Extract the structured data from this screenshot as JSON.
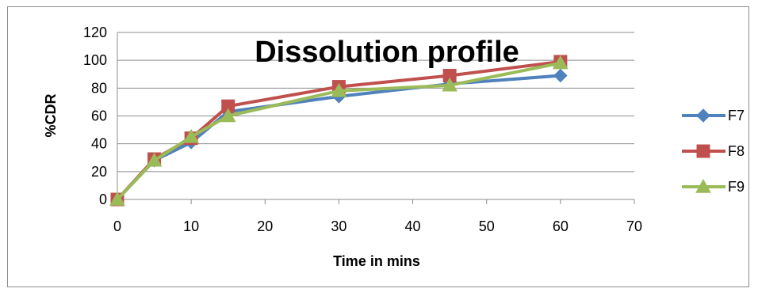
{
  "chart_data": {
    "type": "line",
    "title": "Dissolution profile",
    "xlabel": "Time in mins",
    "ylabel": "%CDR",
    "xlim": [
      0,
      70
    ],
    "ylim": [
      0,
      120
    ],
    "x_ticks": [
      "0",
      "10",
      "20",
      "30",
      "40",
      "50",
      "60",
      "70"
    ],
    "y_ticks": [
      "0",
      "20",
      "40",
      "60",
      "80",
      "100",
      "120"
    ],
    "grid": "horizontal",
    "legend_position": "right",
    "x": [
      0,
      5,
      10,
      15,
      30,
      45,
      60
    ],
    "series": [
      {
        "name": "F7",
        "color": "#4f81bd",
        "marker": "diamond",
        "values": [
          0,
          28,
          41,
          63,
          74,
          83,
          89
        ]
      },
      {
        "name": "F8",
        "color": "#c0504d",
        "marker": "square",
        "values": [
          0,
          29,
          44,
          67,
          81,
          89,
          99
        ]
      },
      {
        "name": "F9",
        "color": "#9bbb59",
        "marker": "triangle",
        "values": [
          0,
          28,
          45,
          60,
          78,
          82,
          98
        ]
      }
    ]
  }
}
